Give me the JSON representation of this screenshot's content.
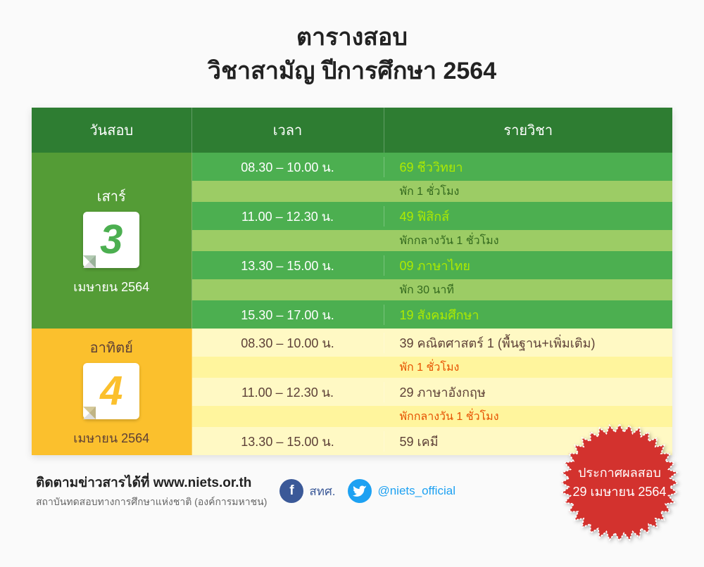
{
  "title_line1": "ตารางสอบ",
  "title_line2": "วิชาสามัญ ปีการศึกษา 2564",
  "colors": {
    "header_green": "#2e7d32",
    "row_green_dark": "#4caf50",
    "row_green_light": "#c5e1a5",
    "break_green": "#9ccc65",
    "day_green": "#549c36",
    "header_yellow": "#f4d03f",
    "row_yellow_dark": "#ffe082",
    "row_yellow_light": "#fff9c4",
    "break_yellow": "#fff59d",
    "day_yellow": "#fbc02d",
    "subj_green_text": "#aeea00",
    "subj_dark_text": "#5d4037",
    "break_green_text": "#33691e",
    "break_orange_text": "#e65100",
    "time_white": "#ffffff",
    "time_dark": "#5d4037",
    "badge": "#d3302f",
    "fb": "#3b5998",
    "tw": "#1da1f2"
  },
  "headers": [
    "วันสอบ",
    "เวลา",
    "รายวิชา"
  ],
  "days": [
    {
      "theme": "green",
      "day_name": "เสาร์",
      "date_num": "3",
      "month_year": "เมษายน 2564",
      "day_name_color": "#ffffff",
      "month_color": "#ffffff",
      "num_color": "#4caf50",
      "rows": [
        {
          "type": "slot",
          "time": "08.30 – 10.00 น.",
          "subject": "69  ชีววิทยา"
        },
        {
          "type": "break",
          "text": "พัก 1 ชั่วโมง"
        },
        {
          "type": "slot",
          "time": "11.00 – 12.30 น.",
          "subject": "49  ฟิสิกส์"
        },
        {
          "type": "break",
          "text": "พักกลางวัน 1 ชั่วโมง"
        },
        {
          "type": "slot",
          "time": "13.30 – 15.00 น.",
          "subject": "09  ภาษาไทย"
        },
        {
          "type": "break",
          "text": "พัก 30 นาที"
        },
        {
          "type": "slot",
          "time": "15.30 – 17.00 น.",
          "subject": "19  สังคมศึกษา"
        }
      ]
    },
    {
      "theme": "yellow",
      "day_name": "อาทิตย์",
      "date_num": "4",
      "month_year": "เมษายน 2564",
      "day_name_color": "#5d4037",
      "month_color": "#5d4037",
      "num_color": "#fbc02d",
      "rows": [
        {
          "type": "slot",
          "time": "08.30 – 10.00 น.",
          "subject": "39  คณิตศาสตร์ 1 (พื้นฐาน+เพิ่มเติม)"
        },
        {
          "type": "break",
          "text": "พัก 1 ชั่วโมง"
        },
        {
          "type": "slot",
          "time": "11.00 – 12.30 น.",
          "subject": "29  ภาษาอังกฤษ"
        },
        {
          "type": "break",
          "text": "พักกลางวัน 1 ชั่วโมง"
        },
        {
          "type": "slot",
          "time": "13.30 – 15.00 น.",
          "subject": "59  เคมี"
        }
      ]
    }
  ],
  "footer": {
    "line1": "ติดตามข่าวสารได้ที่ www.niets.or.th",
    "line2": "สถาบันทดสอบทางการศึกษาแห่งชาติ (องค์การมหาชน)",
    "fb_label": "สทศ.",
    "tw_label": "@niets_official"
  },
  "badge": {
    "line1": "ประกาศผลสอบ",
    "line2": "29 เมษายน 2564"
  }
}
